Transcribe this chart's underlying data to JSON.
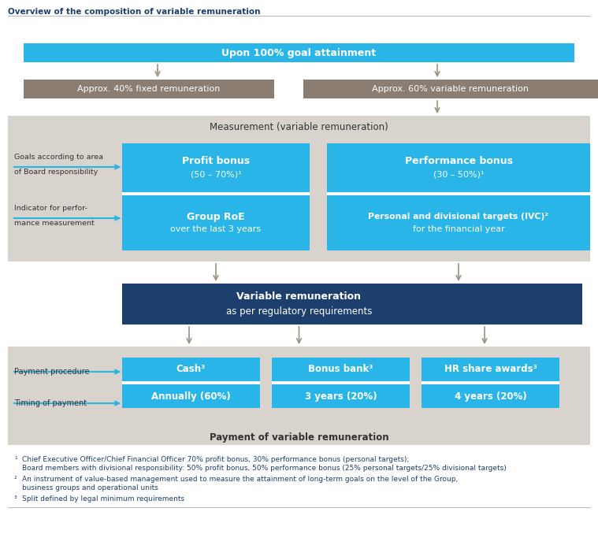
{
  "title": "Overview of the composition of variable remuneration",
  "white_bg": "#ffffff",
  "cyan_color": "#29b5e8",
  "dark_blue": "#1c3f6e",
  "taupe_color": "#8b7d72",
  "light_gray_bg": "#d8d3cd",
  "arrow_color": "#9e9080",
  "label_color": "#333333",
  "title_color": "#1c3f6e",
  "footnote_color": "#1c3f6e",
  "footnote1": "Chief Executive Officer/Chief Financial Officer 70% profit bonus, 30% performance bonus (personal targets);",
  "footnote1b": "Board members with divisional responsibility: 50% profit bonus, 50% performance bonus (25% personal targets/25% divisional targets)",
  "footnote2": "An instrument of value-based management used to measure the attainment of long-term goals on the level of the Group,",
  "footnote2b": "business groups and operational units",
  "footnote3": "Split defined by legal minimum requirements"
}
